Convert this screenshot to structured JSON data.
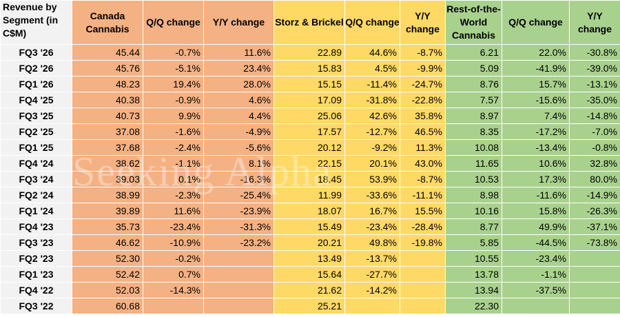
{
  "table": {
    "headers": [
      "Revenue by Segment (in C$M)",
      "Canada Cannabis",
      "Q/Q change",
      "Y/Y change",
      "Storz & Brickel",
      "Q/Q change",
      "Y/Y change",
      "Rest-of-the-World Cannabis",
      "Q/Q change",
      "Y/Y change"
    ],
    "rows": [
      [
        "FQ3 '26",
        "45.44",
        "-0.7%",
        "11.6%",
        "22.89",
        "44.6%",
        "-8.7%",
        "6.21",
        "22.0%",
        "-30.8%"
      ],
      [
        "FQ2 '26",
        "45.76",
        "-5.1%",
        "23.4%",
        "15.83",
        "4.5%",
        "-9.9%",
        "5.09",
        "-41.9%",
        "-39.0%"
      ],
      [
        "FQ1 '26",
        "48.23",
        "19.4%",
        "28.0%",
        "15.15",
        "-11.4%",
        "-24.7%",
        "8.76",
        "15.7%",
        "-13.1%"
      ],
      [
        "FQ4 '25",
        "40.38",
        "-0.9%",
        "4.6%",
        "17.09",
        "-31.8%",
        "-22.8%",
        "7.57",
        "-15.6%",
        "-35.0%"
      ],
      [
        "FQ3 '25",
        "40.73",
        "9.9%",
        "4.4%",
        "25.06",
        "42.6%",
        "35.8%",
        "8.97",
        "7.4%",
        "-14.8%"
      ],
      [
        "FQ2 '25",
        "37.08",
        "-1.6%",
        "-4.9%",
        "17.57",
        "-12.7%",
        "46.5%",
        "8.35",
        "-17.2%",
        "-7.0%"
      ],
      [
        "FQ1 '25",
        "37.68",
        "-2.4%",
        "-5.6%",
        "20.12",
        "-9.2%",
        "11.3%",
        "10.08",
        "-13.4%",
        "-0.8%"
      ],
      [
        "FQ4 '24",
        "38.62",
        "-1.1%",
        "8.1%",
        "22.15",
        "20.1%",
        "43.0%",
        "11.65",
        "10.6%",
        "32.8%"
      ],
      [
        "FQ3 '24",
        "39.03",
        "0.1%",
        "-16.3%",
        "18.45",
        "53.9%",
        "-8.7%",
        "10.53",
        "17.3%",
        "80.0%"
      ],
      [
        "FQ2 '24",
        "38.99",
        "-2.3%",
        "-25.4%",
        "11.99",
        "-33.6%",
        "-11.1%",
        "8.98",
        "-11.6%",
        "-14.9%"
      ],
      [
        "FQ1 '24",
        "39.89",
        "11.6%",
        "-23.9%",
        "18.07",
        "16.7%",
        "15.5%",
        "10.16",
        "15.8%",
        "-26.3%"
      ],
      [
        "FQ4 '23",
        "35.73",
        "-23.4%",
        "-31.3%",
        "15.49",
        "-23.4%",
        "-28.4%",
        "8.77",
        "49.9%",
        "-37.1%"
      ],
      [
        "FQ3 '23",
        "46.62",
        "-10.9%",
        "-23.2%",
        "20.21",
        "49.8%",
        "-19.8%",
        "5.85",
        "-44.5%",
        "-73.8%"
      ],
      [
        "FQ2 '23",
        "52.30",
        "-0.2%",
        "",
        "13.49",
        "-13.7%",
        "",
        "10.55",
        "-23.4%",
        ""
      ],
      [
        "FQ1 '23",
        "52.42",
        "0.7%",
        "",
        "15.64",
        "-27.7%",
        "",
        "13.78",
        "-1.1%",
        ""
      ],
      [
        "FQ4 '22",
        "52.03",
        "-14.3%",
        "",
        "21.62",
        "-14.2%",
        "",
        "13.94",
        "-37.5%",
        ""
      ],
      [
        "FQ3 '22",
        "60.68",
        "",
        "",
        "25.21",
        "",
        "",
        "22.30",
        "",
        ""
      ]
    ]
  },
  "watermark": "Seeking Alpha",
  "colors": {
    "label_column": "#f2f2f2",
    "canada_cannabis": "#f4b183",
    "storz_brickel": "#ffd966",
    "rest_of_world": "#a9d18e"
  }
}
